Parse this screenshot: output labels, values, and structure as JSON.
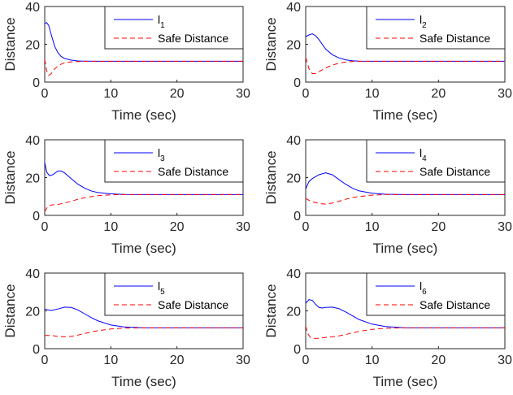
{
  "chart_data": [
    {
      "type": "line",
      "xlabel": "Time (sec)",
      "ylabel": "Distance",
      "xlim": [
        0,
        30
      ],
      "ylim": [
        0,
        40
      ],
      "xticks": [
        "0",
        "10",
        "20",
        "30"
      ],
      "yticks": [
        "0",
        "20",
        "40"
      ],
      "legend_position": "top-right",
      "series": [
        {
          "name": "l",
          "name_sub": "1",
          "color": "#0000ff",
          "style": "solid",
          "x": [
            0,
            0.3,
            0.6,
            1,
            1.5,
            2,
            2.5,
            3,
            4,
            5,
            6,
            8,
            10,
            15,
            20,
            30
          ],
          "y": [
            31,
            31.5,
            30,
            25,
            19,
            15.5,
            13.5,
            12.5,
            11.6,
            11.2,
            11.1,
            11,
            11,
            11,
            11,
            11
          ]
        },
        {
          "name": "Safe Distance",
          "color": "#ff0000",
          "style": "dashed",
          "x": [
            0,
            0.3,
            0.6,
            1,
            1.5,
            2,
            2.5,
            3,
            4,
            5,
            6,
            8,
            10,
            15,
            20,
            30
          ],
          "y": [
            12,
            6,
            3.5,
            4.5,
            7,
            8.5,
            9.5,
            10.2,
            10.7,
            10.9,
            11,
            11,
            11,
            11,
            11,
            11
          ]
        }
      ]
    },
    {
      "type": "line",
      "xlabel": "Time (sec)",
      "ylabel": "Distance",
      "xlim": [
        0,
        30
      ],
      "ylim": [
        0,
        40
      ],
      "xticks": [
        "0",
        "10",
        "20",
        "30"
      ],
      "yticks": [
        "0",
        "20",
        "40"
      ],
      "legend_position": "top-right",
      "series": [
        {
          "name": "l",
          "name_sub": "2",
          "color": "#0000ff",
          "style": "solid",
          "x": [
            0,
            0.5,
            1,
            1.5,
            2,
            3,
            4,
            5,
            6,
            7,
            8,
            10,
            15,
            20,
            30
          ],
          "y": [
            24,
            25,
            25.5,
            24.5,
            22.5,
            17.5,
            14.5,
            12.8,
            11.8,
            11.3,
            11.1,
            11,
            11,
            11,
            11
          ]
        },
        {
          "name": "Safe Distance",
          "color": "#ff0000",
          "style": "dashed",
          "x": [
            0,
            0.5,
            1,
            1.5,
            2,
            3,
            4,
            5,
            6,
            7,
            8,
            10,
            15,
            20,
            30
          ],
          "y": [
            13,
            7,
            4.5,
            4.5,
            5.5,
            7.5,
            9,
            10,
            10.6,
            10.9,
            11,
            11,
            11,
            11,
            11
          ]
        }
      ]
    },
    {
      "type": "line",
      "xlabel": "Time (sec)",
      "ylabel": "Distance",
      "xlim": [
        0,
        30
      ],
      "ylim": [
        0,
        40
      ],
      "xticks": [
        "0",
        "10",
        "20",
        "30"
      ],
      "yticks": [
        "0",
        "20",
        "40"
      ],
      "legend_position": "top-right",
      "series": [
        {
          "name": "l",
          "name_sub": "3",
          "color": "#0000ff",
          "style": "solid",
          "x": [
            0,
            0.3,
            0.7,
            1.2,
            2,
            2.5,
            3,
            4,
            5,
            6,
            7,
            8,
            10,
            12,
            15,
            20,
            30
          ],
          "y": [
            28,
            23,
            21,
            21.5,
            23.5,
            23.5,
            22.5,
            19.5,
            16.5,
            14.5,
            13,
            12.1,
            11.4,
            11.1,
            11,
            11,
            11
          ]
        },
        {
          "name": "Safe Distance",
          "color": "#ff0000",
          "style": "dashed",
          "x": [
            0,
            0.5,
            1,
            2,
            3,
            4,
            5,
            6,
            7,
            8,
            10,
            12,
            15,
            20,
            30
          ],
          "y": [
            2,
            5,
            5.5,
            5.8,
            6.5,
            7.5,
            8.5,
            9.3,
            9.9,
            10.4,
            10.9,
            11,
            11,
            11,
            11
          ]
        }
      ]
    },
    {
      "type": "line",
      "xlabel": "Time (sec)",
      "ylabel": "Distance",
      "xlim": [
        0,
        30
      ],
      "ylim": [
        0,
        40
      ],
      "xticks": [
        "0",
        "10",
        "20",
        "30"
      ],
      "yticks": [
        "0",
        "20",
        "40"
      ],
      "legend_position": "top-right",
      "series": [
        {
          "name": "l",
          "name_sub": "4",
          "color": "#0000ff",
          "style": "solid",
          "x": [
            0,
            0.5,
            1,
            2,
            3,
            4,
            5,
            6,
            7,
            8,
            10,
            12,
            15,
            20,
            30
          ],
          "y": [
            14,
            18,
            19.5,
            21.5,
            22.5,
            21.5,
            19,
            16.5,
            14.5,
            13,
            11.7,
            11.2,
            11,
            11,
            11
          ]
        },
        {
          "name": "Safe Distance",
          "color": "#ff0000",
          "style": "dashed",
          "x": [
            0,
            0.5,
            1,
            2,
            3,
            4,
            5,
            6,
            7,
            8,
            10,
            12,
            15,
            20,
            30
          ],
          "y": [
            9,
            8,
            7.2,
            6.3,
            6,
            6.5,
            7.5,
            8.5,
            9.4,
            10,
            10.7,
            11,
            11,
            11,
            11
          ]
        }
      ]
    },
    {
      "type": "line",
      "xlabel": "Time (sec)",
      "ylabel": "Distance",
      "xlim": [
        0,
        30
      ],
      "ylim": [
        0,
        40
      ],
      "xticks": [
        "0",
        "10",
        "20",
        "30"
      ],
      "yticks": [
        "0",
        "20",
        "40"
      ],
      "legend_position": "top-right",
      "series": [
        {
          "name": "l",
          "name_sub": "5",
          "color": "#0000ff",
          "style": "solid",
          "x": [
            0,
            0.5,
            1,
            2,
            3,
            4,
            5,
            6,
            7,
            8,
            10,
            12,
            15,
            20,
            30
          ],
          "y": [
            21,
            20.5,
            20.2,
            21,
            22,
            21.8,
            20.5,
            18.5,
            16.5,
            14.8,
            12.5,
            11.5,
            11,
            11,
            11
          ]
        },
        {
          "name": "Safe Distance",
          "color": "#ff0000",
          "style": "dashed",
          "x": [
            0,
            1,
            2,
            3,
            4,
            5,
            6,
            7,
            8,
            10,
            12,
            15,
            20,
            30
          ],
          "y": [
            7,
            7,
            6.5,
            6.3,
            6.5,
            7.2,
            8,
            8.8,
            9.5,
            10.4,
            10.9,
            11,
            11,
            11
          ]
        }
      ]
    },
    {
      "type": "line",
      "xlabel": "Time (sec)",
      "ylabel": "Distance",
      "xlim": [
        0,
        30
      ],
      "ylim": [
        0,
        40
      ],
      "xticks": [
        "0",
        "10",
        "20",
        "30"
      ],
      "yticks": [
        "0",
        "20",
        "40"
      ],
      "legend_position": "top-right",
      "series": [
        {
          "name": "l",
          "name_sub": "6",
          "color": "#0000ff",
          "style": "solid",
          "x": [
            0,
            0.5,
            1,
            1.5,
            2,
            2.5,
            3,
            4,
            5,
            6,
            7,
            8,
            10,
            12,
            15,
            20,
            30
          ],
          "y": [
            24,
            26,
            25.5,
            23.5,
            21.8,
            21.5,
            21.8,
            22,
            21.2,
            19.5,
            17.5,
            15.5,
            13,
            11.7,
            11,
            11,
            11
          ]
        },
        {
          "name": "Safe Distance",
          "color": "#ff0000",
          "style": "dashed",
          "x": [
            0,
            0.3,
            0.7,
            1,
            2,
            3,
            4,
            5,
            6,
            7,
            8,
            10,
            12,
            15,
            20,
            30
          ],
          "y": [
            12,
            8,
            6,
            5.5,
            5.5,
            6,
            6.3,
            6.8,
            7.5,
            8.3,
            9.1,
            10.2,
            10.8,
            11,
            11,
            11
          ]
        }
      ]
    }
  ]
}
